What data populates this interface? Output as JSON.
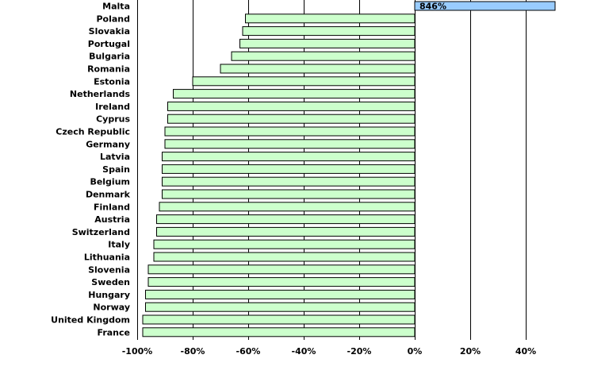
{
  "chart_data": {
    "type": "bar",
    "orientation": "horizontal",
    "title": "",
    "xlabel": "",
    "ylabel": "",
    "xlim": [
      -100,
      50
    ],
    "x_ticks": [
      -100,
      -80,
      -60,
      -40,
      -20,
      0,
      20,
      40
    ],
    "x_tick_labels": [
      "-100%",
      "-80%",
      "-60%",
      "-40%",
      "-20%",
      "0%",
      "20%",
      "40%"
    ],
    "grid": "vertical lines at major ticks",
    "categories": [
      "Malta",
      "Poland",
      "Slovakia",
      "Portugal",
      "Bulgaria",
      "Romania",
      "Estonia",
      "Netherlands",
      "Ireland",
      "Cyprus",
      "Czech Republic",
      "Germany",
      "Latvia",
      "Spain",
      "Belgium",
      "Denmark",
      "Finland",
      "Austria",
      "Switzerland",
      "Italy",
      "Lithuania",
      "Slovenia",
      "Sweden",
      "Hungary",
      "Norway",
      "United Kingdom",
      "France"
    ],
    "values": [
      846,
      -61,
      -62,
      -63,
      -66,
      -70,
      -80,
      -87,
      -89,
      -89,
      -90,
      -90,
      -91,
      -91,
      -91,
      -91,
      -92,
      -93,
      -93,
      -94,
      -94,
      -96,
      -96,
      -97,
      -97,
      -98,
      -98
    ],
    "data_labels": [
      "846%",
      "",
      "",
      "",
      "",
      "",
      "",
      "",
      "",
      "",
      "",
      "",
      "",
      "",
      "",
      "",
      "",
      "",
      "",
      "",
      "",
      "",
      "",
      "",
      "",
      "",
      ""
    ],
    "colors": {
      "negative_fill": "#ccffcc",
      "positive_fill": "#99ccff",
      "bar_stroke": "#000000",
      "grid": "#000000"
    }
  }
}
